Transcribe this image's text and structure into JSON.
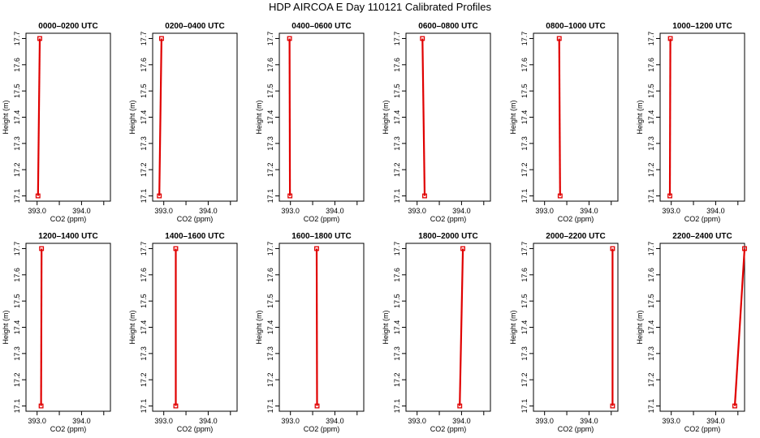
{
  "title": "HDP AIRCOA E  Day 110121  Calibrated Profiles",
  "colors": {
    "profile": "#e00000",
    "axis": "#000000"
  },
  "chart_data": [
    {
      "type": "line",
      "title": "0000–0200 UTC",
      "xlabel": "CO2 (ppm)",
      "ylabel": "Height (m)",
      "xlim": [
        392.75,
        394.65
      ],
      "ylim": [
        17.08,
        17.72
      ],
      "x_ticks": [
        393.0,
        393.5,
        394.0,
        394.5
      ],
      "x_tick_labels": [
        "393.0",
        "",
        "394.0",
        ""
      ],
      "y_ticks": [
        17.1,
        17.2,
        17.3,
        17.4,
        17.5,
        17.6,
        17.7
      ],
      "y_tick_labels": [
        "17.1",
        "17.2",
        "17.3",
        "17.4",
        "17.5",
        "17.6",
        "17.7"
      ],
      "series": [
        {
          "x": [
            393.02,
            393.06
          ],
          "y": [
            17.1,
            17.7
          ]
        }
      ]
    },
    {
      "type": "line",
      "title": "0200–0400 UTC",
      "xlabel": "CO2 (ppm)",
      "ylabel": "Height (m)",
      "xlim": [
        392.75,
        394.65
      ],
      "ylim": [
        17.08,
        17.72
      ],
      "x_ticks": [
        393.0,
        393.5,
        394.0,
        394.5
      ],
      "x_tick_labels": [
        "393.0",
        "",
        "394.0",
        ""
      ],
      "y_ticks": [
        17.1,
        17.2,
        17.3,
        17.4,
        17.5,
        17.6,
        17.7
      ],
      "y_tick_labels": [
        "17.1",
        "17.2",
        "17.3",
        "17.4",
        "17.5",
        "17.6",
        "17.7"
      ],
      "series": [
        {
          "x": [
            392.9,
            392.95
          ],
          "y": [
            17.1,
            17.7
          ]
        }
      ]
    },
    {
      "type": "line",
      "title": "0400–0600 UTC",
      "xlabel": "CO2 (ppm)",
      "ylabel": "Height (m)",
      "xlim": [
        392.75,
        394.65
      ],
      "ylim": [
        17.08,
        17.72
      ],
      "x_ticks": [
        393.0,
        393.5,
        394.0,
        394.5
      ],
      "x_tick_labels": [
        "393.0",
        "",
        "394.0",
        ""
      ],
      "y_ticks": [
        17.1,
        17.2,
        17.3,
        17.4,
        17.5,
        17.6,
        17.7
      ],
      "y_tick_labels": [
        "17.1",
        "17.2",
        "17.3",
        "17.4",
        "17.5",
        "17.6",
        "17.7"
      ],
      "series": [
        {
          "x": [
            392.99,
            392.98
          ],
          "y": [
            17.1,
            17.7
          ]
        }
      ]
    },
    {
      "type": "line",
      "title": "0600–0800 UTC",
      "xlabel": "CO2 (ppm)",
      "ylabel": "Height (m)",
      "xlim": [
        392.75,
        394.65
      ],
      "ylim": [
        17.08,
        17.72
      ],
      "x_ticks": [
        393.0,
        393.5,
        394.0,
        394.5
      ],
      "x_tick_labels": [
        "393.0",
        "",
        "394.0",
        ""
      ],
      "y_ticks": [
        17.1,
        17.2,
        17.3,
        17.4,
        17.5,
        17.6,
        17.7
      ],
      "y_tick_labels": [
        "17.1",
        "17.2",
        "17.3",
        "17.4",
        "17.5",
        "17.6",
        "17.7"
      ],
      "series": [
        {
          "x": [
            393.17,
            393.12
          ],
          "y": [
            17.1,
            17.7
          ]
        }
      ]
    },
    {
      "type": "line",
      "title": "0800–1000 UTC",
      "xlabel": "CO2 (ppm)",
      "ylabel": "Height (m)",
      "xlim": [
        392.75,
        394.65
      ],
      "ylim": [
        17.08,
        17.72
      ],
      "x_ticks": [
        393.0,
        393.5,
        394.0,
        394.5
      ],
      "x_tick_labels": [
        "393.0",
        "",
        "394.0",
        ""
      ],
      "y_ticks": [
        17.1,
        17.2,
        17.3,
        17.4,
        17.5,
        17.6,
        17.7
      ],
      "y_tick_labels": [
        "17.1",
        "17.2",
        "17.3",
        "17.4",
        "17.5",
        "17.6",
        "17.7"
      ],
      "series": [
        {
          "x": [
            393.35,
            393.33
          ],
          "y": [
            17.1,
            17.7
          ]
        }
      ]
    },
    {
      "type": "line",
      "title": "1000–1200 UTC",
      "xlabel": "CO2 (ppm)",
      "ylabel": "Height (m)",
      "xlim": [
        392.75,
        394.65
      ],
      "ylim": [
        17.08,
        17.72
      ],
      "x_ticks": [
        393.0,
        393.5,
        394.0,
        394.5
      ],
      "x_tick_labels": [
        "393.0",
        "",
        "394.0",
        ""
      ],
      "y_ticks": [
        17.1,
        17.2,
        17.3,
        17.4,
        17.5,
        17.6,
        17.7
      ],
      "y_tick_labels": [
        "17.1",
        "17.2",
        "17.3",
        "17.4",
        "17.5",
        "17.6",
        "17.7"
      ],
      "series": [
        {
          "x": [
            392.97,
            392.98
          ],
          "y": [
            17.1,
            17.7
          ]
        }
      ]
    },
    {
      "type": "line",
      "title": "1200–1400 UTC",
      "xlabel": "CO2 (ppm)",
      "ylabel": "Height (m)",
      "xlim": [
        392.75,
        394.65
      ],
      "ylim": [
        17.08,
        17.72
      ],
      "x_ticks": [
        393.0,
        393.5,
        394.0,
        394.5
      ],
      "x_tick_labels": [
        "393.0",
        "",
        "394.0",
        ""
      ],
      "y_ticks": [
        17.1,
        17.2,
        17.3,
        17.4,
        17.5,
        17.6,
        17.7
      ],
      "y_tick_labels": [
        "17.1",
        "17.2",
        "17.3",
        "17.4",
        "17.5",
        "17.6",
        "17.7"
      ],
      "series": [
        {
          "x": [
            393.09,
            393.1
          ],
          "y": [
            17.1,
            17.7
          ]
        }
      ]
    },
    {
      "type": "line",
      "title": "1400–1600 UTC",
      "xlabel": "CO2 (ppm)",
      "ylabel": "Height (m)",
      "xlim": [
        392.75,
        394.65
      ],
      "ylim": [
        17.08,
        17.72
      ],
      "x_ticks": [
        393.0,
        393.5,
        394.0,
        394.5
      ],
      "x_tick_labels": [
        "393.0",
        "",
        "394.0",
        ""
      ],
      "y_ticks": [
        17.1,
        17.2,
        17.3,
        17.4,
        17.5,
        17.6,
        17.7
      ],
      "y_tick_labels": [
        "17.1",
        "17.2",
        "17.3",
        "17.4",
        "17.5",
        "17.6",
        "17.7"
      ],
      "series": [
        {
          "x": [
            393.27,
            393.27
          ],
          "y": [
            17.1,
            17.7
          ]
        }
      ]
    },
    {
      "type": "line",
      "title": "1600–1800 UTC",
      "xlabel": "CO2 (ppm)",
      "ylabel": "Height (m)",
      "xlim": [
        392.75,
        394.65
      ],
      "ylim": [
        17.08,
        17.72
      ],
      "x_ticks": [
        393.0,
        393.5,
        394.0,
        394.5
      ],
      "x_tick_labels": [
        "393.0",
        "",
        "394.0",
        ""
      ],
      "y_ticks": [
        17.1,
        17.2,
        17.3,
        17.4,
        17.5,
        17.6,
        17.7
      ],
      "y_tick_labels": [
        "17.1",
        "17.2",
        "17.3",
        "17.4",
        "17.5",
        "17.6",
        "17.7"
      ],
      "series": [
        {
          "x": [
            393.6,
            393.59
          ],
          "y": [
            17.1,
            17.7
          ]
        }
      ]
    },
    {
      "type": "line",
      "title": "1800–2000 UTC",
      "xlabel": "CO2 (ppm)",
      "ylabel": "Height (m)",
      "xlim": [
        392.75,
        394.65
      ],
      "ylim": [
        17.08,
        17.72
      ],
      "x_ticks": [
        393.0,
        393.5,
        394.0,
        394.5
      ],
      "x_tick_labels": [
        "393.0",
        "",
        "394.0",
        ""
      ],
      "y_ticks": [
        17.1,
        17.2,
        17.3,
        17.4,
        17.5,
        17.6,
        17.7
      ],
      "y_tick_labels": [
        "17.1",
        "17.2",
        "17.3",
        "17.4",
        "17.5",
        "17.6",
        "17.7"
      ],
      "series": [
        {
          "x": [
            393.96,
            394.03
          ],
          "y": [
            17.1,
            17.7
          ]
        }
      ]
    },
    {
      "type": "line",
      "title": "2000–2200 UTC",
      "xlabel": "CO2 (ppm)",
      "ylabel": "Height (m)",
      "xlim": [
        392.75,
        394.65
      ],
      "ylim": [
        17.08,
        17.72
      ],
      "x_ticks": [
        393.0,
        393.5,
        394.0,
        394.5
      ],
      "x_tick_labels": [
        "393.0",
        "",
        "394.0",
        ""
      ],
      "y_ticks": [
        17.1,
        17.2,
        17.3,
        17.4,
        17.5,
        17.6,
        17.7
      ],
      "y_tick_labels": [
        "17.1",
        "17.2",
        "17.3",
        "17.4",
        "17.5",
        "17.6",
        "17.7"
      ],
      "series": [
        {
          "x": [
            394.53,
            394.53
          ],
          "y": [
            17.1,
            17.7
          ]
        }
      ]
    },
    {
      "type": "line",
      "title": "2200–2400 UTC",
      "xlabel": "CO2 (ppm)",
      "ylabel": "Height (m)",
      "xlim": [
        392.75,
        394.65
      ],
      "ylim": [
        17.08,
        17.72
      ],
      "x_ticks": [
        393.0,
        393.5,
        394.0,
        394.5
      ],
      "x_tick_labels": [
        "393.0",
        "",
        "394.0",
        ""
      ],
      "y_ticks": [
        17.1,
        17.2,
        17.3,
        17.4,
        17.5,
        17.6,
        17.7
      ],
      "y_tick_labels": [
        "17.1",
        "17.2",
        "17.3",
        "17.4",
        "17.5",
        "17.6",
        "17.7"
      ],
      "series": [
        {
          "x": [
            394.43,
            394.65
          ],
          "y": [
            17.1,
            17.7
          ]
        }
      ]
    }
  ]
}
